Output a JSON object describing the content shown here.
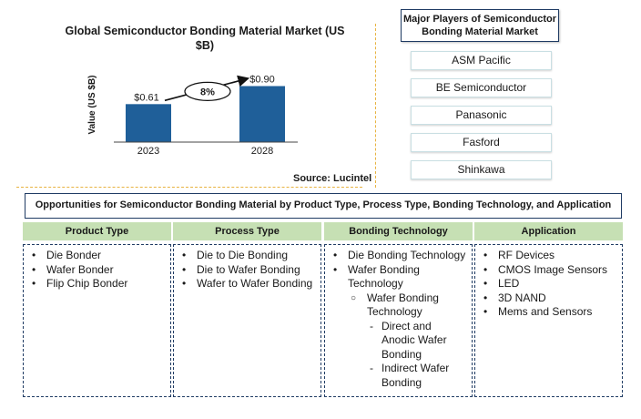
{
  "chart_data": {
    "type": "bar",
    "title": "Global Semiconductor Bonding Material Market (US $B)",
    "ylabel": "Value (US $B)",
    "categories": [
      "2023",
      "2028"
    ],
    "values": [
      0.61,
      0.9
    ],
    "value_labels": [
      "$0.61",
      "$0.90"
    ],
    "growth_label": "8%",
    "ylim": [
      0,
      1.2
    ],
    "bar_color": "#1f5f99",
    "source": "Source: Lucintel"
  },
  "players": {
    "title": "Major Players of Semiconductor Bonding Material Market",
    "items": [
      "ASM Pacific",
      "BE Semiconductor",
      "Panasonic",
      "Fasford",
      "Shinkawa"
    ]
  },
  "opportunities": {
    "title": "Opportunities for Semiconductor Bonding Material by Product Type, Process Type, Bonding Technology, and Application",
    "columns": [
      {
        "header": "Product Type",
        "items": [
          {
            "text": "Die Bonder",
            "level": 1
          },
          {
            "text": "Wafer Bonder",
            "level": 1
          },
          {
            "text": "Flip Chip Bonder",
            "level": 1
          }
        ]
      },
      {
        "header": "Process Type",
        "items": [
          {
            "text": "Die to Die Bonding",
            "level": 1
          },
          {
            "text": "Die to Wafer Bonding",
            "level": 1
          },
          {
            "text": "Wafer to Wafer Bonding",
            "level": 1
          }
        ]
      },
      {
        "header": "Bonding Technology",
        "items": [
          {
            "text": "Die Bonding Technology",
            "level": 1
          },
          {
            "text": "Wafer Bonding Technology",
            "level": 1
          },
          {
            "text": "Wafer Bonding Technology",
            "level": 2
          },
          {
            "text": "Direct and Anodic Wafer Bonding",
            "level": 3
          },
          {
            "text": "Indirect Wafer Bonding",
            "level": 3
          }
        ]
      },
      {
        "header": "Application",
        "items": [
          {
            "text": "RF Devices",
            "level": 1
          },
          {
            "text": "CMOS Image Sensors",
            "level": 1
          },
          {
            "text": "LED",
            "level": 1
          },
          {
            "text": "3D NAND",
            "level": 1
          },
          {
            "text": "Mems and Sensors",
            "level": 1
          }
        ]
      }
    ]
  }
}
